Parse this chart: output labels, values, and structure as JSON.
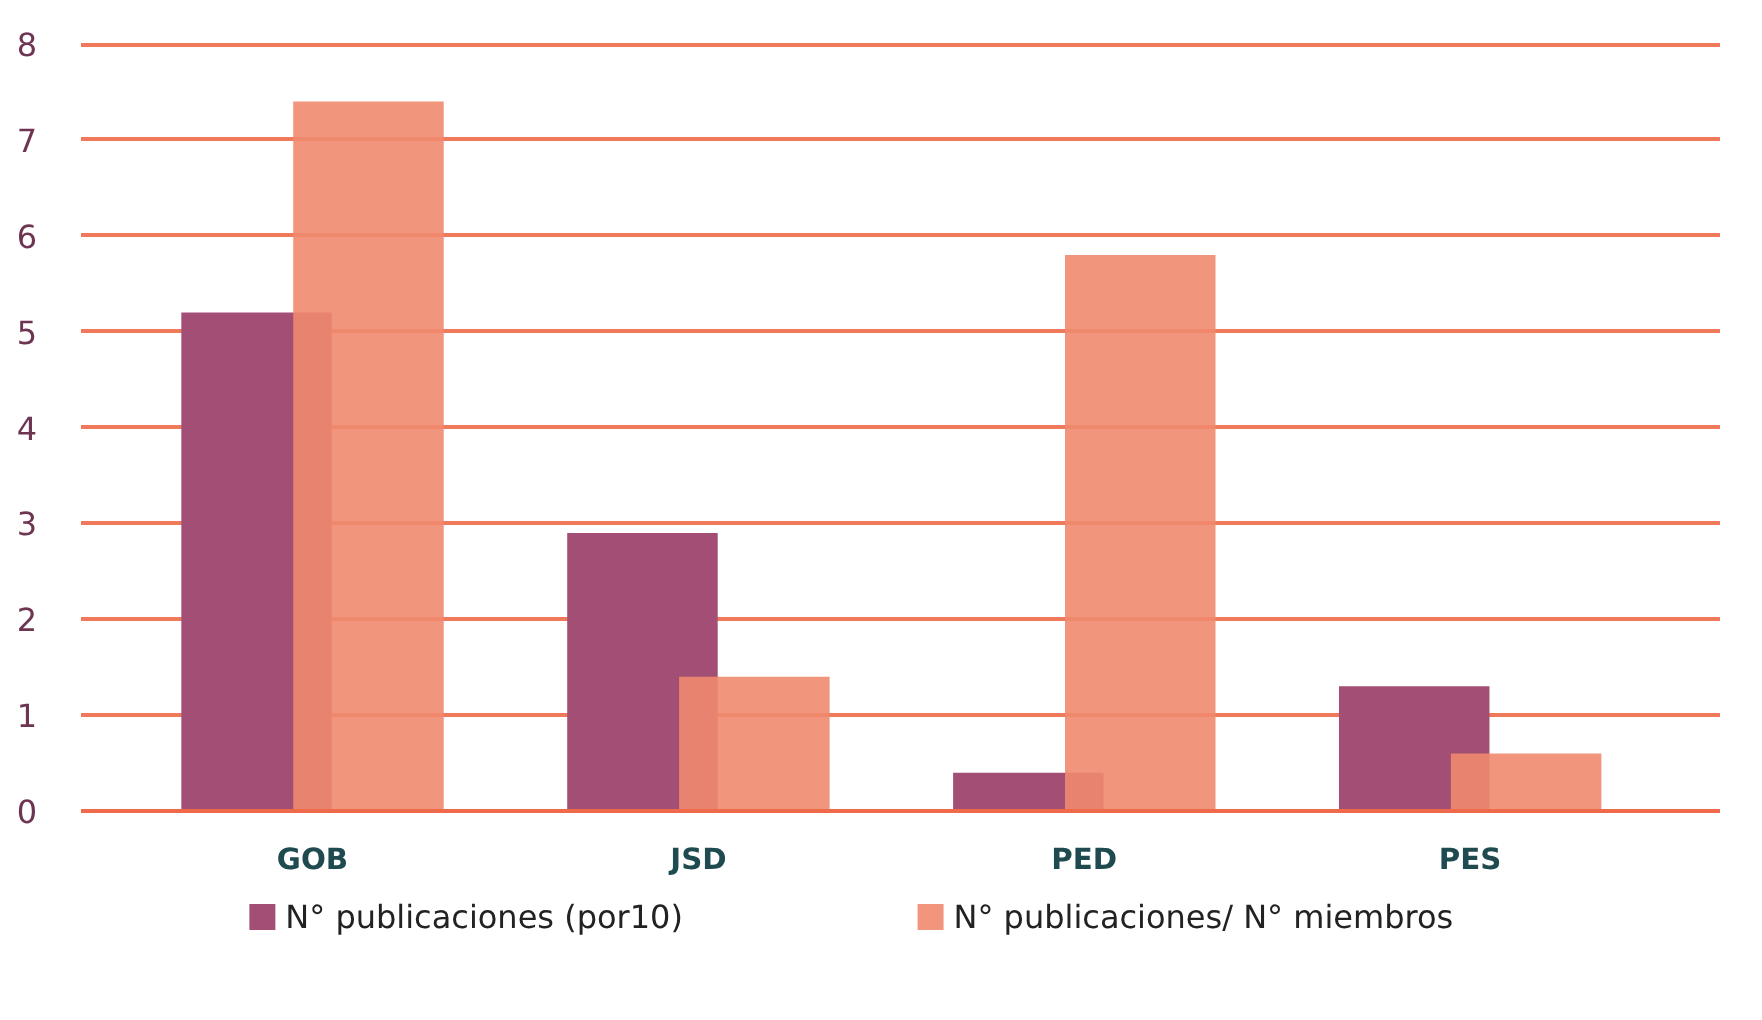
{
  "chart_data": {
    "type": "bar",
    "categories": [
      "GOB",
      "JSD",
      "PED",
      "PES"
    ],
    "series": [
      {
        "name": "N° publicaciones (por10)",
        "color": "#a34e74",
        "values": [
          5.2,
          2.9,
          0.4,
          1.3
        ]
      },
      {
        "name": "N° publicaciones/ N° miembros",
        "color": "#ef8a6f",
        "values": [
          7.4,
          1.4,
          5.8,
          0.6
        ]
      }
    ],
    "ylim": [
      0,
      8
    ],
    "yticks": [
      0,
      1,
      2,
      3,
      4,
      5,
      6,
      7,
      8
    ],
    "grid": "y",
    "legend": "bottom"
  }
}
